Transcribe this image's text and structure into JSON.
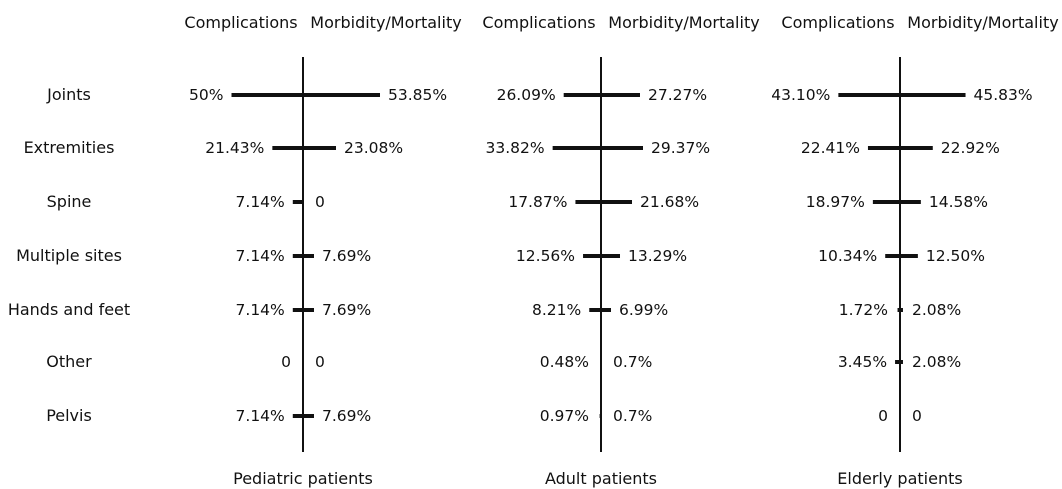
{
  "chart_data": {
    "type": "bar",
    "title": "",
    "layout": "butterfly",
    "categories": [
      "Joints",
      "Extremities",
      "Spine",
      "Multiple sites",
      "Hands and feet",
      "Other",
      "Pelvis"
    ],
    "side_labels": {
      "left": "Complications",
      "right": "Morbidity/Mortality"
    },
    "unit": "%",
    "groups": [
      {
        "name": "Pediatric patients",
        "complications": [
          50,
          21.43,
          7.14,
          7.14,
          7.14,
          0,
          7.14
        ],
        "morbidity_mortality": [
          53.85,
          23.08,
          0,
          7.69,
          7.69,
          0,
          7.69
        ],
        "complications_labels": [
          "50%",
          "21.43%",
          "7.14%",
          "7.14%",
          "7.14%",
          "0",
          "7.14%"
        ],
        "morbidity_mortality_labels": [
          "53.85%",
          "23.08%",
          "0",
          "7.69%",
          "7.69%",
          "0",
          "7.69%"
        ]
      },
      {
        "name": "Adult patients",
        "complications": [
          26.09,
          33.82,
          17.87,
          12.56,
          8.21,
          0.48,
          0.97
        ],
        "morbidity_mortality": [
          27.27,
          29.37,
          21.68,
          13.29,
          6.99,
          0.7,
          0.7
        ],
        "complications_labels": [
          "26.09%",
          "33.82%",
          "17.87%",
          "12.56%",
          "8.21%",
          "0.48%",
          "0.97%"
        ],
        "morbidity_mortality_labels": [
          "27.27%",
          "29.37%",
          "21.68%",
          "13.29%",
          "6.99%",
          "0.7%",
          "0.7%"
        ]
      },
      {
        "name": "Elderly patients",
        "complications": [
          43.1,
          22.41,
          18.97,
          10.34,
          1.72,
          3.45,
          0
        ],
        "morbidity_mortality": [
          45.83,
          22.92,
          14.58,
          12.5,
          2.08,
          2.08,
          0
        ],
        "complications_labels": [
          "43.10%",
          "22.41%",
          "18.97%",
          "10.34%",
          "1.72%",
          "3.45%",
          "0"
        ],
        "morbidity_mortality_labels": [
          "45.83%",
          "22.92%",
          "14.58%",
          "12.50%",
          "2.08%",
          "2.08%",
          "0"
        ]
      }
    ],
    "colors": {
      "bar": "#111111",
      "text": "#111111",
      "background": "#ffffff"
    }
  }
}
